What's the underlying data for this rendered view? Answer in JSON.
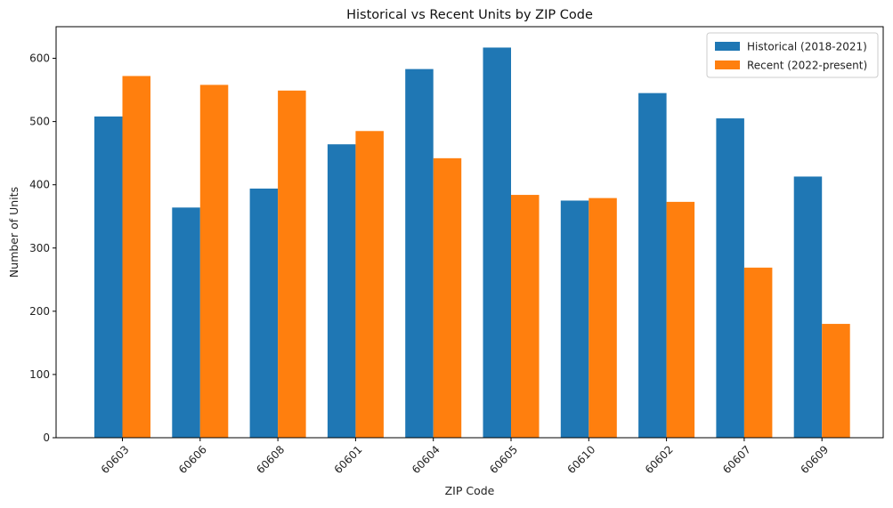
{
  "chart_data": {
    "type": "bar",
    "title": "Historical vs Recent Units by ZIP Code",
    "xlabel": "ZIP Code",
    "ylabel": "Number of Units",
    "categories": [
      "60603",
      "60606",
      "60608",
      "60601",
      "60604",
      "60605",
      "60610",
      "60602",
      "60607",
      "60609"
    ],
    "series": [
      {
        "name": "Historical (2018-2021)",
        "color": "#1f77b4",
        "values": [
          508,
          364,
          394,
          464,
          583,
          617,
          375,
          545,
          505,
          413
        ]
      },
      {
        "name": "Recent (2022-present)",
        "color": "#ff7f0e",
        "values": [
          572,
          558,
          549,
          485,
          442,
          384,
          379,
          373,
          269,
          180
        ]
      }
    ],
    "ylim": [
      0,
      650
    ],
    "yticks": [
      0,
      100,
      200,
      300,
      400,
      500,
      600
    ],
    "grid": false,
    "legend_position": "top-right"
  }
}
